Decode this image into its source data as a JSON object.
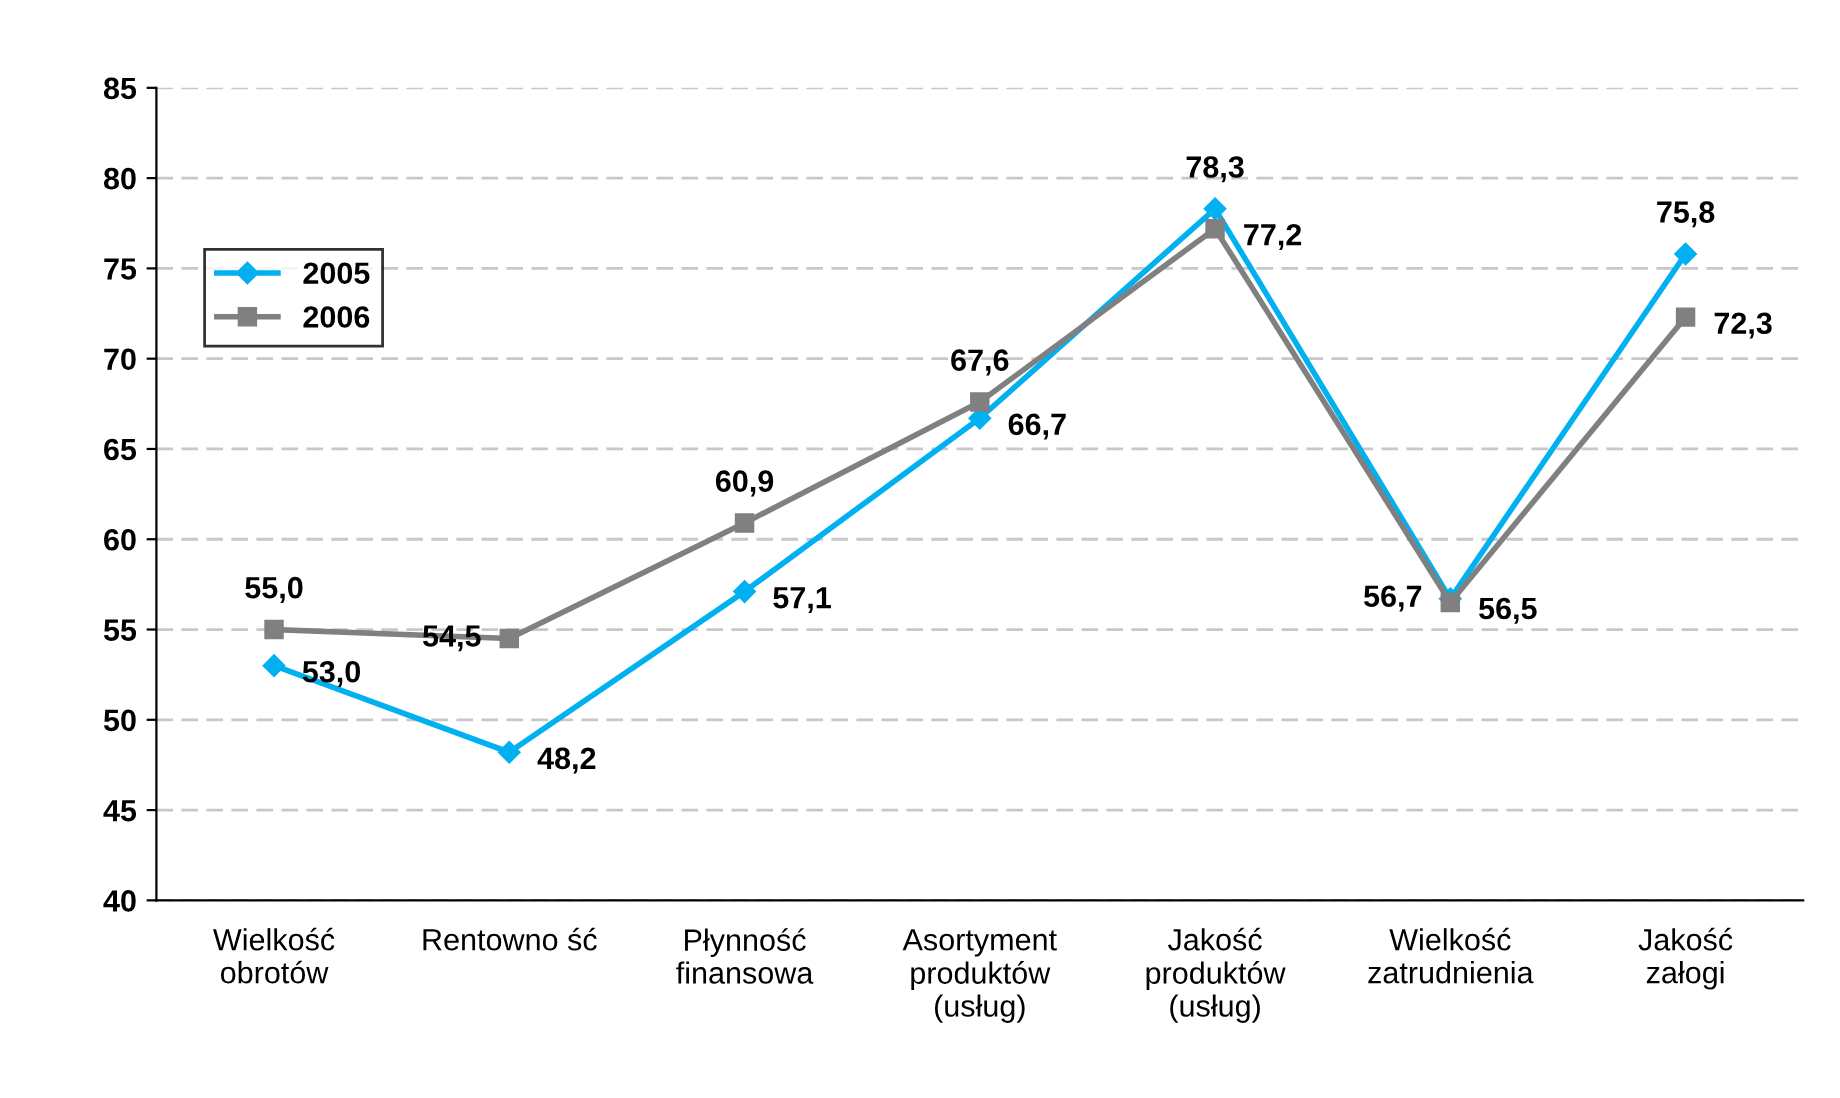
{
  "chart_data": {
    "type": "line",
    "categories": [
      "Wielkość\nobrotów",
      "Rentowno ść",
      "Płynność\nfinansowa",
      "Asortyment\nproduktów\n(usług)",
      "Jakość\nproduktów\n(usług)",
      "Wielkość\nzatrudnienia",
      "Jakość\nzałogi"
    ],
    "series": [
      {
        "name": "2005",
        "color": "#00b0f0",
        "marker": "diamond",
        "values": [
          53.0,
          48.2,
          57.1,
          66.7,
          78.3,
          56.7,
          75.8
        ],
        "value_labels": [
          "53,0",
          "48,2",
          "57,1",
          "66,7",
          "78,3",
          "56,7",
          "75,8"
        ]
      },
      {
        "name": "2006",
        "color": "#808080",
        "marker": "square",
        "values": [
          55.0,
          54.5,
          60.9,
          67.6,
          77.2,
          56.5,
          72.3
        ],
        "value_labels": [
          "55,0",
          "54,5",
          "60,9",
          "67,6",
          "77,2",
          "56,5",
          "72,3"
        ]
      }
    ],
    "ylim": [
      40,
      85
    ],
    "yticks": [
      40,
      45,
      50,
      55,
      60,
      65,
      70,
      75,
      80,
      85
    ],
    "grid": "y",
    "legend": "top left",
    "line_style": "solid"
  }
}
